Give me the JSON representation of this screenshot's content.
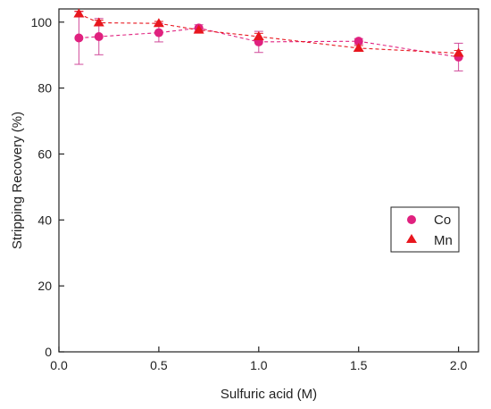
{
  "chart_data": {
    "type": "scatter",
    "xlabel": "Sulfuric acid (M)",
    "ylabel": "Stripping Recovery (%)",
    "xlim": [
      0.0,
      2.1
    ],
    "ylim": [
      0,
      104
    ],
    "xticks": [
      0.0,
      0.5,
      1.0,
      1.5,
      2.0
    ],
    "xtick_labels": [
      "0.0",
      "0.5",
      "1.0",
      "1.5",
      "2.0"
    ],
    "yticks": [
      0,
      20,
      40,
      60,
      80,
      100
    ],
    "ytick_labels": [
      "0",
      "20",
      "40",
      "60",
      "80",
      "100"
    ],
    "legend_position": "right",
    "series": [
      {
        "name": "Co",
        "marker": "circle",
        "color": "#e0217f",
        "errorbar_color": "#d04a9a",
        "line": "dashed",
        "x": [
          0.1,
          0.2,
          0.5,
          0.7,
          1.0,
          1.5,
          2.0
        ],
        "y": [
          95.2,
          95.6,
          96.8,
          98.2,
          94.0,
          94.2,
          89.4
        ],
        "yerr": [
          8.0,
          5.5,
          2.8,
          1.0,
          3.2,
          0.8,
          4.2
        ]
      },
      {
        "name": "Mn",
        "marker": "triangle",
        "color": "#e8161e",
        "line": "dashed",
        "x": [
          0.1,
          0.2,
          0.5,
          0.7,
          1.0,
          1.5,
          2.0
        ],
        "y": [
          102.5,
          99.8,
          99.6,
          97.6,
          95.6,
          92.1,
          90.6
        ],
        "yerr": [
          0.8,
          0.8,
          0.6,
          0.6,
          1.0,
          0.8,
          0.8
        ]
      }
    ]
  }
}
